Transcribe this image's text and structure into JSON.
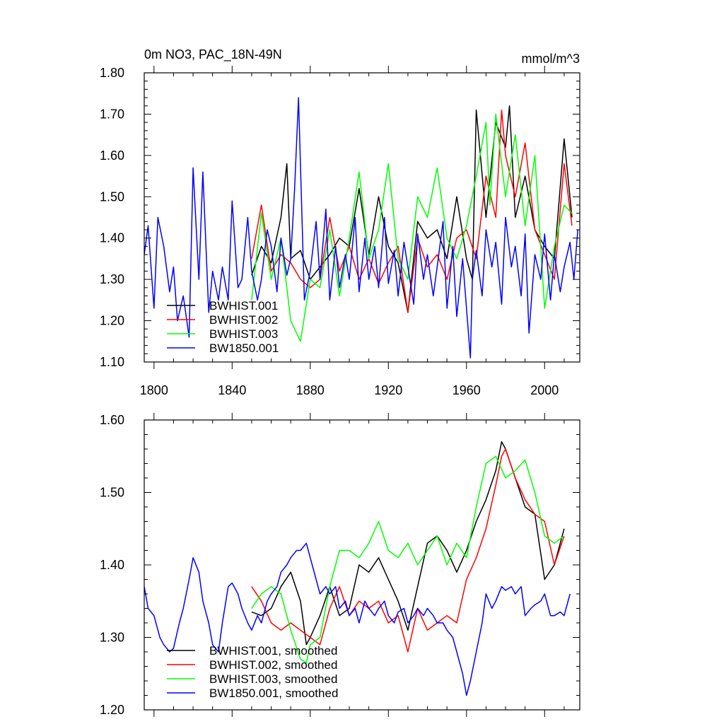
{
  "chart_data": [
    {
      "type": "line",
      "title": "0m NO3, PAC_18N-49N",
      "units": "mmol/m^3",
      "xlim": [
        1795,
        2018
      ],
      "ylim": [
        1.1,
        1.8
      ],
      "xticks": [
        1800,
        1840,
        1880,
        1920,
        1960,
        2000
      ],
      "yticks": [
        "1.10",
        "1.20",
        "1.30",
        "1.40",
        "1.50",
        "1.60",
        "1.70",
        "1.80"
      ],
      "legend_position": "bottom-left",
      "series": [
        {
          "name": "BWHIST.001",
          "color": "#000000",
          "x": [
            1850,
            1855,
            1860,
            1865,
            1868,
            1870,
            1875,
            1880,
            1885,
            1890,
            1895,
            1900,
            1905,
            1910,
            1915,
            1920,
            1925,
            1930,
            1935,
            1940,
            1945,
            1950,
            1955,
            1960,
            1963,
            1965,
            1970,
            1975,
            1980,
            1982,
            1985,
            1990,
            1995,
            2000,
            2005,
            2010,
            2014
          ],
          "y": [
            1.31,
            1.38,
            1.34,
            1.45,
            1.58,
            1.35,
            1.37,
            1.3,
            1.33,
            1.36,
            1.4,
            1.38,
            1.52,
            1.36,
            1.5,
            1.38,
            1.34,
            1.22,
            1.44,
            1.4,
            1.42,
            1.35,
            1.5,
            1.35,
            1.3,
            1.71,
            1.45,
            1.68,
            1.62,
            1.72,
            1.45,
            1.55,
            1.42,
            1.38,
            1.35,
            1.64,
            1.45
          ]
        },
        {
          "name": "BWHIST.002",
          "color": "#ff0000",
          "x": [
            1850,
            1855,
            1860,
            1865,
            1870,
            1875,
            1880,
            1885,
            1890,
            1895,
            1900,
            1905,
            1910,
            1915,
            1920,
            1925,
            1930,
            1935,
            1940,
            1945,
            1950,
            1955,
            1960,
            1965,
            1970,
            1975,
            1978,
            1980,
            1985,
            1990,
            1995,
            2000,
            2005,
            2010,
            2014
          ],
          "y": [
            1.35,
            1.48,
            1.32,
            1.36,
            1.34,
            1.3,
            1.28,
            1.3,
            1.45,
            1.32,
            1.38,
            1.3,
            1.35,
            1.29,
            1.34,
            1.38,
            1.22,
            1.4,
            1.33,
            1.36,
            1.3,
            1.4,
            1.42,
            1.35,
            1.55,
            1.45,
            1.71,
            1.6,
            1.5,
            1.63,
            1.42,
            1.36,
            1.3,
            1.58,
            1.43
          ]
        },
        {
          "name": "BWHIST.003",
          "color": "#00ff00",
          "x": [
            1850,
            1855,
            1860,
            1865,
            1870,
            1875,
            1880,
            1885,
            1890,
            1895,
            1900,
            1905,
            1910,
            1915,
            1920,
            1925,
            1930,
            1935,
            1940,
            1945,
            1950,
            1955,
            1960,
            1965,
            1970,
            1972,
            1975,
            1980,
            1985,
            1990,
            1995,
            2000,
            2005,
            2010,
            2014
          ],
          "y": [
            1.25,
            1.46,
            1.3,
            1.4,
            1.2,
            1.15,
            1.3,
            1.28,
            1.42,
            1.26,
            1.4,
            1.56,
            1.35,
            1.42,
            1.58,
            1.35,
            1.3,
            1.5,
            1.45,
            1.57,
            1.4,
            1.35,
            1.43,
            1.55,
            1.68,
            1.48,
            1.7,
            1.5,
            1.65,
            1.43,
            1.6,
            1.23,
            1.38,
            1.48,
            1.46
          ]
        },
        {
          "name": "BW1850.001",
          "color": "#0000ff",
          "x": [
            1795,
            1797,
            1800,
            1802,
            1805,
            1808,
            1810,
            1812,
            1815,
            1818,
            1820,
            1823,
            1825,
            1828,
            1830,
            1833,
            1835,
            1838,
            1840,
            1843,
            1845,
            1848,
            1850,
            1853,
            1855,
            1858,
            1860,
            1863,
            1865,
            1868,
            1870,
            1872,
            1874,
            1877,
            1880,
            1883,
            1885,
            1888,
            1890,
            1893,
            1895,
            1898,
            1900,
            1903,
            1905,
            1908,
            1910,
            1913,
            1915,
            1918,
            1920,
            1923,
            1925,
            1928,
            1930,
            1933,
            1935,
            1938,
            1940,
            1943,
            1945,
            1948,
            1950,
            1953,
            1955,
            1958,
            1960,
            1962,
            1963,
            1965,
            1968,
            1970,
            1973,
            1975,
            1978,
            1980,
            1983,
            1985,
            1988,
            1990,
            1992,
            1995,
            1998,
            2000,
            2003,
            2005,
            2008,
            2010,
            2013,
            2015,
            2017
          ],
          "y": [
            1.36,
            1.43,
            1.23,
            1.45,
            1.38,
            1.27,
            1.33,
            1.2,
            1.26,
            1.16,
            1.57,
            1.3,
            1.56,
            1.22,
            1.32,
            1.25,
            1.33,
            1.25,
            1.49,
            1.28,
            1.3,
            1.45,
            1.32,
            1.25,
            1.3,
            1.42,
            1.38,
            1.27,
            1.4,
            1.31,
            1.35,
            1.52,
            1.74,
            1.25,
            1.32,
            1.44,
            1.3,
            1.47,
            1.25,
            1.38,
            1.28,
            1.36,
            1.3,
            1.45,
            1.27,
            1.4,
            1.3,
            1.38,
            1.28,
            1.45,
            1.29,
            1.37,
            1.26,
            1.39,
            1.33,
            1.24,
            1.41,
            1.3,
            1.36,
            1.26,
            1.33,
            1.44,
            1.23,
            1.38,
            1.21,
            1.35,
            1.23,
            1.11,
            1.3,
            1.37,
            1.26,
            1.42,
            1.33,
            1.39,
            1.24,
            1.45,
            1.33,
            1.38,
            1.26,
            1.41,
            1.17,
            1.36,
            1.3,
            1.41,
            1.25,
            1.36,
            1.27,
            1.33,
            1.39,
            1.3,
            1.42
          ]
        }
      ]
    },
    {
      "type": "line",
      "xlim": [
        1795,
        2018
      ],
      "ylim": [
        1.2,
        1.6
      ],
      "xticks": [
        1800,
        1840,
        1880,
        1920,
        1960,
        2000
      ],
      "yticks": [
        "1.20",
        "1.30",
        "1.40",
        "1.50",
        "1.60"
      ],
      "legend_position": "bottom-left",
      "series": [
        {
          "name": "BWHIST.001, smoothed",
          "color": "#000000",
          "x": [
            1850,
            1855,
            1860,
            1865,
            1870,
            1875,
            1878,
            1880,
            1885,
            1890,
            1895,
            1900,
            1905,
            1910,
            1915,
            1920,
            1925,
            1930,
            1935,
            1940,
            1945,
            1950,
            1955,
            1960,
            1965,
            1970,
            1975,
            1978,
            1980,
            1985,
            1990,
            1995,
            2000,
            2005,
            2010
          ],
          "y": [
            1.335,
            1.33,
            1.34,
            1.37,
            1.39,
            1.35,
            1.29,
            1.3,
            1.33,
            1.37,
            1.33,
            1.34,
            1.4,
            1.39,
            1.41,
            1.38,
            1.35,
            1.31,
            1.37,
            1.43,
            1.44,
            1.42,
            1.39,
            1.42,
            1.46,
            1.49,
            1.53,
            1.57,
            1.56,
            1.52,
            1.48,
            1.47,
            1.38,
            1.4,
            1.45
          ]
        },
        {
          "name": "BWHIST.002, smoothed",
          "color": "#ff0000",
          "x": [
            1850,
            1855,
            1860,
            1865,
            1870,
            1875,
            1880,
            1885,
            1890,
            1895,
            1900,
            1905,
            1910,
            1915,
            1920,
            1925,
            1930,
            1935,
            1940,
            1945,
            1950,
            1955,
            1960,
            1965,
            1970,
            1975,
            1978,
            1980,
            1985,
            1990,
            1995,
            2000,
            2005,
            2010
          ],
          "y": [
            1.37,
            1.35,
            1.32,
            1.31,
            1.32,
            1.31,
            1.3,
            1.29,
            1.34,
            1.37,
            1.33,
            1.35,
            1.34,
            1.35,
            1.32,
            1.33,
            1.28,
            1.34,
            1.31,
            1.32,
            1.33,
            1.32,
            1.38,
            1.41,
            1.45,
            1.51,
            1.55,
            1.56,
            1.52,
            1.49,
            1.47,
            1.46,
            1.4,
            1.44
          ]
        },
        {
          "name": "BWHIST.003, smoothed",
          "color": "#00ff00",
          "x": [
            1850,
            1855,
            1860,
            1865,
            1870,
            1875,
            1878,
            1880,
            1885,
            1890,
            1895,
            1900,
            1905,
            1910,
            1915,
            1920,
            1925,
            1930,
            1935,
            1940,
            1945,
            1950,
            1955,
            1960,
            1965,
            1970,
            1975,
            1980,
            1985,
            1990,
            1995,
            2000,
            2005,
            2010
          ],
          "y": [
            1.34,
            1.36,
            1.37,
            1.36,
            1.31,
            1.27,
            1.265,
            1.29,
            1.3,
            1.37,
            1.42,
            1.42,
            1.41,
            1.43,
            1.46,
            1.42,
            1.41,
            1.43,
            1.4,
            1.42,
            1.44,
            1.4,
            1.43,
            1.41,
            1.48,
            1.54,
            1.55,
            1.52,
            1.53,
            1.545,
            1.5,
            1.44,
            1.43,
            1.44
          ]
        },
        {
          "name": "BW1850.001, smoothed",
          "color": "#0000ff",
          "x": [
            1795,
            1797,
            1800,
            1803,
            1805,
            1808,
            1810,
            1813,
            1815,
            1818,
            1820,
            1823,
            1825,
            1828,
            1830,
            1833,
            1835,
            1838,
            1840,
            1843,
            1845,
            1848,
            1850,
            1853,
            1855,
            1858,
            1860,
            1863,
            1865,
            1868,
            1870,
            1873,
            1875,
            1878,
            1880,
            1883,
            1885,
            1888,
            1890,
            1893,
            1895,
            1898,
            1900,
            1903,
            1905,
            1908,
            1910,
            1913,
            1915,
            1918,
            1920,
            1923,
            1925,
            1928,
            1930,
            1933,
            1935,
            1938,
            1940,
            1943,
            1945,
            1948,
            1950,
            1953,
            1955,
            1958,
            1960,
            1962,
            1965,
            1968,
            1970,
            1973,
            1975,
            1978,
            1980,
            1983,
            1985,
            1988,
            1990,
            1993,
            1995,
            1998,
            2000,
            2003,
            2005,
            2008,
            2010,
            2013
          ],
          "y": [
            1.37,
            1.34,
            1.33,
            1.3,
            1.29,
            1.28,
            1.285,
            1.32,
            1.34,
            1.38,
            1.41,
            1.39,
            1.35,
            1.32,
            1.29,
            1.28,
            1.32,
            1.37,
            1.375,
            1.36,
            1.34,
            1.32,
            1.31,
            1.33,
            1.32,
            1.35,
            1.36,
            1.37,
            1.39,
            1.4,
            1.41,
            1.42,
            1.42,
            1.43,
            1.41,
            1.38,
            1.36,
            1.37,
            1.36,
            1.37,
            1.34,
            1.35,
            1.33,
            1.34,
            1.32,
            1.35,
            1.34,
            1.33,
            1.34,
            1.35,
            1.33,
            1.32,
            1.335,
            1.34,
            1.32,
            1.33,
            1.34,
            1.33,
            1.34,
            1.33,
            1.32,
            1.32,
            1.31,
            1.3,
            1.28,
            1.25,
            1.22,
            1.24,
            1.28,
            1.32,
            1.36,
            1.34,
            1.35,
            1.37,
            1.365,
            1.37,
            1.36,
            1.37,
            1.33,
            1.34,
            1.345,
            1.35,
            1.36,
            1.33,
            1.33,
            1.335,
            1.33,
            1.36
          ]
        }
      ]
    }
  ]
}
